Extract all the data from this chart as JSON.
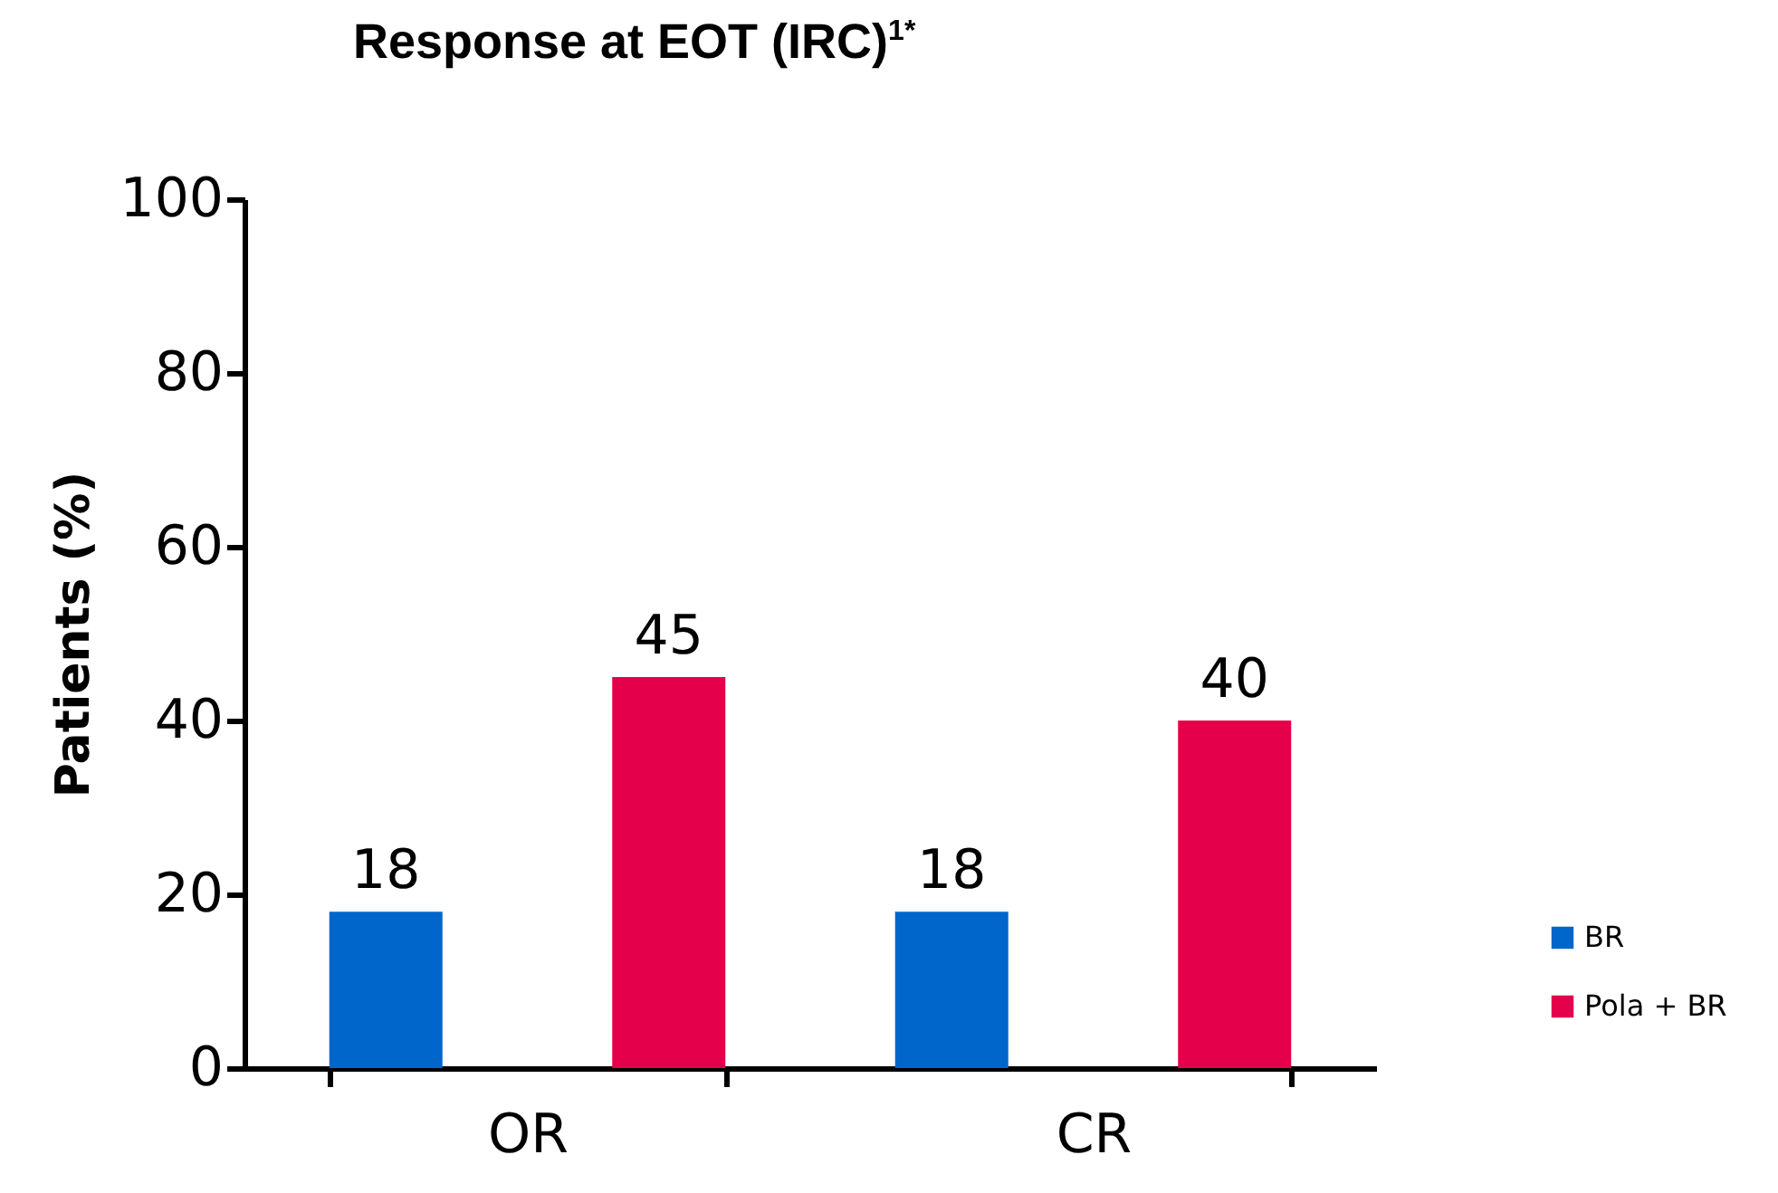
{
  "chart_data": {
    "type": "bar",
    "title": "Response at EOT (IRC)$^{1*}$",
    "ylabel": "Patients (%)",
    "categories": [
      "OR",
      "CR"
    ],
    "series": [
      {
        "name": "BR",
        "color": "#0066cc",
        "values": [
          18,
          18
        ]
      },
      {
        "name": "Pola + BR",
        "color": "#e4004b",
        "values": [
          45,
          40
        ]
      }
    ],
    "ylim": [
      0,
      100
    ],
    "yticks": [
      0,
      20,
      40,
      60,
      80,
      100
    ],
    "grid": false,
    "legend": "bottom right",
    "data_labels": true
  }
}
